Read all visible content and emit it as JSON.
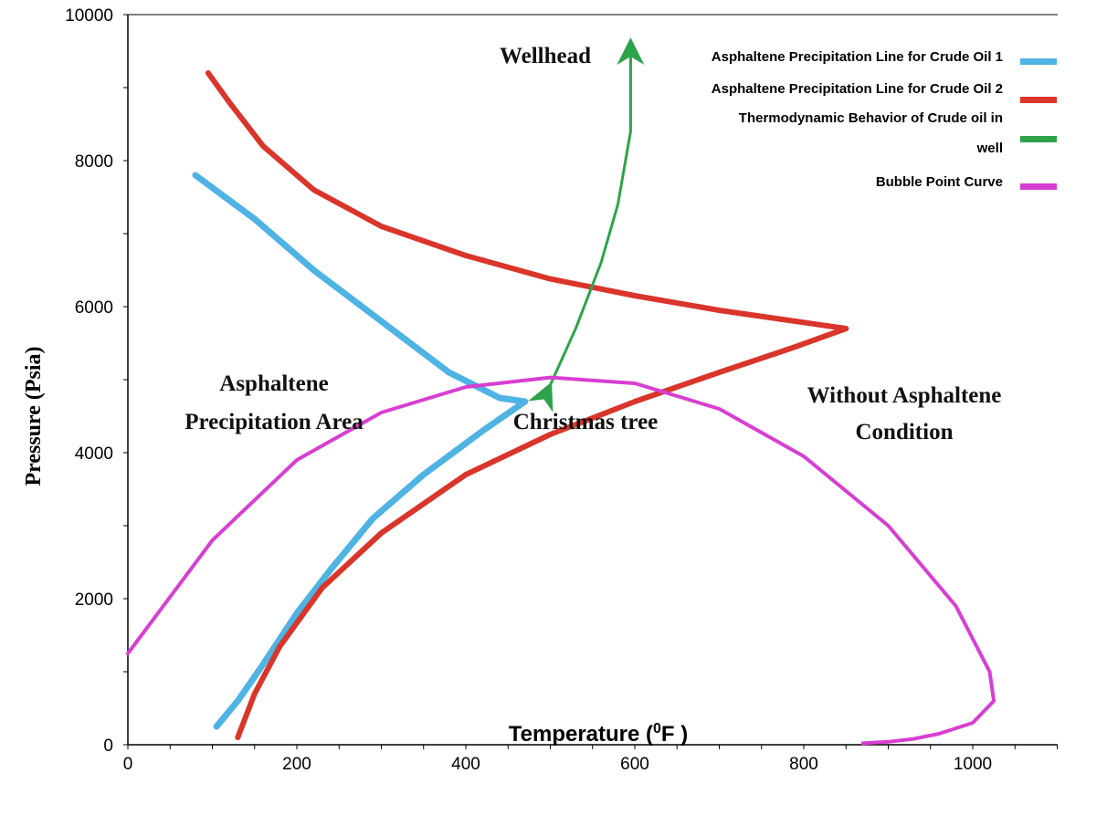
{
  "chart_data": {
    "type": "line",
    "xlabel": "Temperature (",
    "xlabel_sup": "0",
    "xlabel_unit": "F )",
    "ylabel": "Pressure (Psia)",
    "xlim": [
      0,
      1100
    ],
    "ylim": [
      0,
      10000
    ],
    "x_ticks": [
      "0",
      "200",
      "400",
      "600",
      "800",
      "1000"
    ],
    "y_ticks": [
      "0",
      "2000",
      "4000",
      "6000",
      "8000",
      "10000"
    ],
    "legend_position": "top-right",
    "series": [
      {
        "name": "Asphaltene Precipitation Line for Crude Oil 1",
        "color": "#4fb3e3",
        "x": [
          80,
          150,
          220,
          300,
          380,
          440,
          470,
          420,
          350,
          290,
          240,
          200,
          160,
          130,
          105
        ],
        "y": [
          7800,
          7200,
          6500,
          5800,
          5100,
          4750,
          4700,
          4300,
          3700,
          3100,
          2400,
          1800,
          1100,
          600,
          250
        ]
      },
      {
        "name": "Asphaltene Precipitation Line for Crude Oil 2",
        "color": "#d9352a",
        "x": [
          95,
          120,
          160,
          220,
          300,
          400,
          500,
          600,
          700,
          790,
          850,
          790,
          700,
          600,
          500,
          400,
          300,
          230,
          180,
          150,
          130
        ],
        "y": [
          9200,
          8800,
          8200,
          7600,
          7100,
          6700,
          6380,
          6150,
          5950,
          5800,
          5700,
          5450,
          5100,
          4700,
          4250,
          3700,
          2900,
          2150,
          1350,
          700,
          100
        ]
      },
      {
        "name": "Thermodynamic Behavior of Crude oil in well",
        "color": "#2ea34a",
        "x": [
          495,
          530,
          560,
          580,
          595,
          595
        ],
        "y": [
          4800,
          5700,
          6600,
          7400,
          8400,
          9500
        ]
      },
      {
        "name": "Bubble Point Curve",
        "color": "#d73fd1",
        "x": [
          0,
          100,
          200,
          300,
          400,
          500,
          600,
          700,
          800,
          900,
          980,
          1020,
          1025,
          1000,
          960,
          930,
          900,
          870
        ],
        "y": [
          1250,
          2800,
          3900,
          4550,
          4900,
          5030,
          4950,
          4600,
          3950,
          3000,
          1900,
          1000,
          600,
          300,
          150,
          80,
          40,
          20
        ]
      }
    ],
    "annotations": [
      "Wellhead",
      "Christmas tree",
      "Asphaltene",
      "Precipitation Area",
      "Without Asphaltene",
      "Condition"
    ]
  }
}
